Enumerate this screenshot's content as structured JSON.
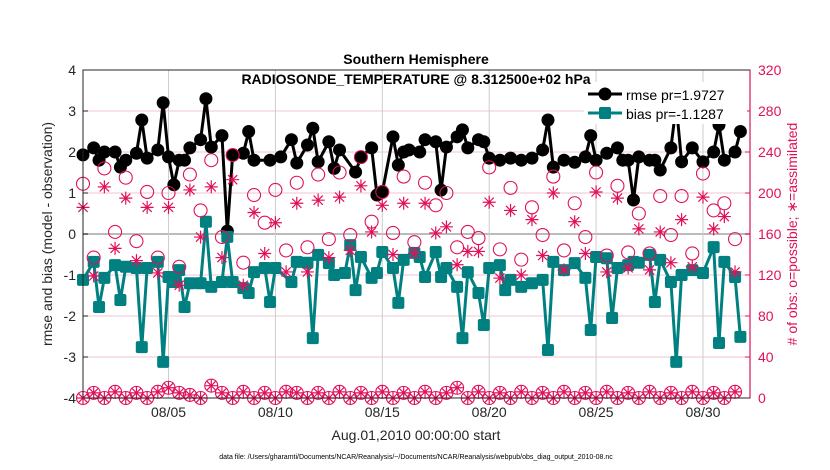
{
  "chart_data": {
    "type": "line",
    "title": [
      "Southern Hemisphere",
      "RADIOSONDE_TEMPERATURE @ 8.312500e+02 hPa"
    ],
    "xlabel": "Aug.01,2010 00:00:00 start",
    "ylabel_left": "rmse and bias (model - observation)",
    "ylabel_right": "# of obs: o=possible; ∗=assimilated",
    "footnote": "data file: /Users/gharamti/Documents/NCAR/Reanalysis/~/Documents/NCAR/Reanalysis/webpub/obs_diag_output_2010-08.nc",
    "xlim_days": [
      1,
      32.2
    ],
    "ylim_left": [
      -4,
      4
    ],
    "ylim_right": [
      0,
      320
    ],
    "left_ticks": [
      "-4",
      "-3",
      "-2",
      "-1",
      "0",
      "1",
      "2",
      "3",
      "4"
    ],
    "right_ticks": [
      "0",
      "40",
      "80",
      "120",
      "160",
      "200",
      "240",
      "280",
      "320"
    ],
    "x_ticks": [
      {
        "day": 5,
        "label": "08/05"
      },
      {
        "day": 10,
        "label": "08/10"
      },
      {
        "day": 15,
        "label": "08/15"
      },
      {
        "day": 20,
        "label": "08/20"
      },
      {
        "day": 25,
        "label": "08/25"
      },
      {
        "day": 30,
        "label": "08/30"
      }
    ],
    "grid": true,
    "legend_position": "top-right",
    "legend": [
      "rmse pr=1.9727",
      "bias pr=-1.1287"
    ],
    "colors": {
      "rmse": "#000000",
      "bias": "#008080",
      "obs": "#e0105a",
      "grid": "#cccccc",
      "hgrid": "#f2c4d4"
    },
    "series": [
      {
        "name": "rmse",
        "axis": "left",
        "x": [
          1,
          1.5,
          1.75,
          2,
          2.5,
          2.75,
          3,
          3.5,
          3.75,
          4,
          4.5,
          4.75,
          5,
          5.25,
          5.5,
          5.75,
          6,
          6.5,
          6.75,
          7,
          7.5,
          7.75,
          8,
          8.5,
          8.75,
          9,
          9.75,
          10.25,
          10.75,
          11,
          11.5,
          11.75,
          12,
          12.5,
          12.75,
          13,
          13.75,
          14,
          14.5,
          14.75,
          15,
          15.5,
          15.75,
          16,
          16.25,
          16.75,
          17,
          17.5,
          17.75,
          18,
          18.5,
          18.75,
          19,
          19.5,
          19.75,
          20,
          20.5,
          21,
          21.5,
          22,
          22.5,
          22.75,
          23,
          23.5,
          24,
          24.5,
          24.75,
          25,
          25.5,
          26,
          26.25,
          26.5,
          26.75,
          27,
          27.5,
          27.75,
          28,
          28.5,
          28.75,
          29,
          29.5,
          30,
          30.5,
          30.75,
          31,
          31.5,
          31.75
        ],
        "y": [
          1.93,
          2.1,
          1.8,
          2.0,
          2.0,
          1.63,
          1.8,
          1.97,
          2.78,
          1.85,
          2.05,
          3.2,
          1.88,
          1.2,
          1.8,
          1.8,
          2.1,
          2.3,
          3.3,
          2.12,
          2.4,
          0.07,
          1.93,
          1.97,
          2.5,
          1.8,
          1.8,
          1.88,
          2.3,
          1.73,
          2.17,
          2.58,
          1.76,
          2.25,
          1.6,
          2.05,
          1.51,
          1.88,
          2.1,
          0.95,
          1.02,
          2.37,
          1.68,
          2.0,
          2.05,
          2.0,
          2.3,
          2.25,
          1.07,
          2.12,
          2.37,
          2.54,
          2.1,
          2.3,
          2.25,
          1.85,
          1.8,
          1.85,
          1.8,
          1.85,
          2.05,
          2.78,
          1.63,
          1.8,
          1.75,
          1.88,
          2.4,
          1.8,
          1.97,
          2.1,
          1.8,
          1.8,
          0.83,
          1.88,
          1.8,
          1.8,
          1.56,
          2.1,
          3.15,
          1.76,
          2.1,
          1.76,
          2.0,
          2.66,
          1.8,
          2.0,
          2.5
        ]
      },
      {
        "name": "bias",
        "axis": "left",
        "x": [
          1,
          1.5,
          1.75,
          2,
          2.5,
          2.75,
          3,
          3.5,
          3.75,
          4,
          4.5,
          4.75,
          5,
          5.25,
          5.5,
          5.75,
          6,
          6.5,
          6.75,
          7,
          7.5,
          7.75,
          8,
          8.5,
          8.75,
          9,
          9.5,
          9.75,
          10,
          10.75,
          11,
          11.5,
          11.75,
          12,
          12.5,
          12.75,
          13.25,
          13.5,
          13.75,
          14,
          14.5,
          14.75,
          15,
          15.5,
          15.75,
          16,
          16.5,
          16.75,
          17,
          17.5,
          17.75,
          18,
          18.5,
          18.75,
          19,
          19.5,
          19.75,
          20,
          20.5,
          20.75,
          21,
          21.5,
          22,
          22.5,
          22.75,
          23,
          23.5,
          24,
          24.5,
          24.75,
          25,
          25.5,
          25.75,
          26,
          26.5,
          26.75,
          27,
          27.5,
          27.75,
          28,
          28.5,
          28.75,
          29,
          29.5,
          30,
          30.5,
          30.75,
          31,
          31.5,
          31.75
        ],
        "y": [
          -1.12,
          -0.68,
          -1.78,
          -1.07,
          -0.76,
          -1.61,
          -0.8,
          -0.83,
          -2.76,
          -0.83,
          -0.68,
          -3.12,
          -1.05,
          -1.17,
          -0.88,
          -1.78,
          -1.2,
          -1.2,
          0.3,
          -1.29,
          -1.17,
          -0.07,
          -1.17,
          -1.32,
          -1.44,
          -0.93,
          -0.83,
          -1.66,
          -0.83,
          -1.17,
          -0.68,
          -0.7,
          -2.54,
          -0.51,
          -0.71,
          -1.0,
          -0.95,
          -0.27,
          -1.37,
          -0.56,
          -1.07,
          -0.95,
          -0.44,
          -0.83,
          -1.68,
          -0.63,
          -0.46,
          -0.56,
          -1.05,
          -0.44,
          -1.05,
          -0.83,
          -1.29,
          -2.54,
          -0.93,
          -1.44,
          -2.22,
          -0.83,
          -0.76,
          -1.37,
          -1.12,
          -1.29,
          -1.2,
          -1.12,
          -2.83,
          -0.68,
          -0.88,
          -0.71,
          -1.07,
          -2.34,
          -0.56,
          -0.59,
          -2.05,
          -0.83,
          -0.76,
          -0.68,
          -0.7,
          -0.51,
          -1.66,
          -0.63,
          -1.17,
          -3.12,
          -1.0,
          -0.88,
          -0.95,
          -0.32,
          -2.66,
          -0.68,
          -1.05,
          -2.51
        ]
      },
      {
        "name": "obs possible",
        "axis": "right",
        "x_start": 1,
        "x_step": 0.5,
        "y": [
          209,
          137,
          224,
          162,
          215,
          153,
          201,
          137,
          200,
          128,
          218,
          183,
          232,
          157,
          237,
          132,
          198,
          171,
          203,
          144,
          210,
          147,
          218,
          155,
          220,
          159,
          235,
          172,
          201,
          161,
          216,
          152,
          210,
          188,
          200,
          147,
          162,
          156,
          225,
          145,
          205,
          135,
          186,
          159,
          216,
          144,
          190,
          157,
          220,
          139,
          207,
          142,
          180,
          141,
          197,
          159,
          197,
          141,
          219,
          183,
          190,
          155
        ]
      },
      {
        "name": "obs assimilated",
        "axis": "right",
        "x_start": 1,
        "x_step": 0.5,
        "y": [
          186,
          119,
          206,
          146,
          195,
          134,
          186,
          122,
          186,
          110,
          203,
          157,
          206,
          137,
          213,
          110,
          181,
          141,
          171,
          123,
          190,
          123,
          193,
          137,
          196,
          144,
          207,
          162,
          188,
          140,
          190,
          141,
          190,
          161,
          167,
          130,
          143,
          143,
          191,
          117,
          183,
          120,
          174,
          139,
          200,
          125,
          172,
          141,
          201,
          123,
          195,
          127,
          165,
          125,
          162,
          132,
          174,
          128,
          196,
          165,
          177,
          123
        ]
      },
      {
        "name": "obs possible (lower)",
        "axis": "right",
        "x_start": 1,
        "x_step": 0.5,
        "y": [
          0,
          5,
          0,
          6,
          0,
          5,
          0,
          6,
          10,
          5,
          3,
          0,
          12,
          5,
          0,
          6,
          0,
          5,
          0,
          6,
          5,
          0,
          5,
          0,
          6,
          0,
          5,
          0,
          6,
          0,
          5,
          0,
          6,
          0,
          5,
          10,
          0,
          6,
          0,
          5,
          0,
          6,
          0,
          5,
          0,
          6,
          0,
          5,
          0,
          6,
          0,
          5,
          0,
          6,
          0,
          5,
          0,
          6,
          0,
          5,
          0,
          6
        ]
      },
      {
        "name": "obs assimilated (lower)",
        "axis": "right",
        "x_start": 1,
        "x_step": 0.5,
        "y": [
          0,
          5,
          0,
          6,
          0,
          5,
          0,
          6,
          10,
          5,
          3,
          0,
          12,
          5,
          0,
          6,
          0,
          5,
          0,
          6,
          5,
          0,
          5,
          0,
          6,
          0,
          5,
          0,
          6,
          0,
          5,
          0,
          6,
          0,
          5,
          10,
          0,
          6,
          0,
          5,
          0,
          6,
          0,
          5,
          0,
          6,
          0,
          5,
          0,
          6,
          0,
          5,
          0,
          6,
          0,
          5,
          0,
          6,
          0,
          5,
          0,
          6
        ]
      }
    ]
  }
}
